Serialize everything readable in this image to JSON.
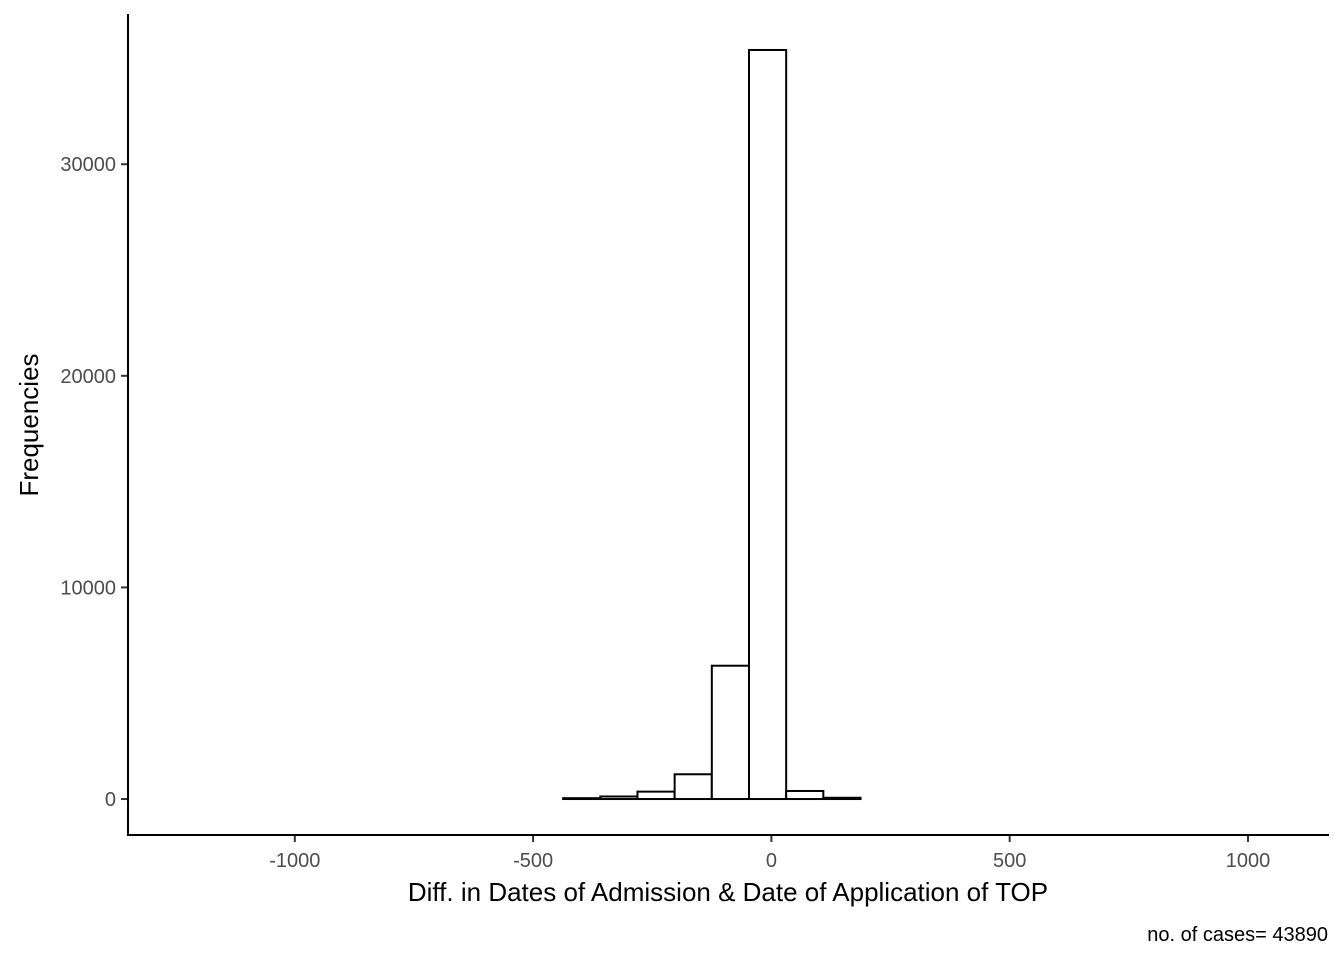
{
  "chart_data": {
    "type": "bar",
    "title": "",
    "xlabel": "Diff. in Dates of Admission & Date of Application of TOP",
    "ylabel": "Frequencies",
    "caption": "no. of cases= 43890",
    "xlim": [
      -1350,
      1170
    ],
    "ylim": [
      -1700,
      37100
    ],
    "x_ticks": [
      -1000,
      -500,
      0,
      500,
      1000
    ],
    "x_tick_labels": [
      "-1000",
      "-500",
      "0",
      "500",
      "1000"
    ],
    "y_ticks": [
      0,
      10000,
      20000,
      30000
    ],
    "y_tick_labels": [
      "0",
      "10000",
      "20000",
      "30000"
    ],
    "grid": false,
    "fill_color": "#ffffff",
    "outline_color": "#000000",
    "bins": [
      {
        "start": -1295,
        "end": -1217,
        "count": 0
      },
      {
        "start": -1217,
        "end": -1139,
        "count": 0
      },
      {
        "start": -1139,
        "end": -1061,
        "count": 0
      },
      {
        "start": -1061,
        "end": -983,
        "count": 0
      },
      {
        "start": -983,
        "end": -905,
        "count": 0
      },
      {
        "start": -905,
        "end": -827,
        "count": 0
      },
      {
        "start": -827,
        "end": -749,
        "count": 0
      },
      {
        "start": -749,
        "end": -671,
        "count": 0
      },
      {
        "start": -671,
        "end": -593,
        "count": 0
      },
      {
        "start": -593,
        "end": -515,
        "count": 0
      },
      {
        "start": -515,
        "end": -437,
        "count": 0
      },
      {
        "start": -437,
        "end": -359,
        "count": 40
      },
      {
        "start": -359,
        "end": -281,
        "count": 120
      },
      {
        "start": -281,
        "end": -203,
        "count": 350
      },
      {
        "start": -203,
        "end": -125,
        "count": 1170
      },
      {
        "start": -125,
        "end": -47,
        "count": 6300
      },
      {
        "start": -47,
        "end": 31,
        "count": 35400
      },
      {
        "start": 31,
        "end": 109,
        "count": 380
      },
      {
        "start": 109,
        "end": 187,
        "count": 60
      },
      {
        "start": 187,
        "end": 265,
        "count": 0
      },
      {
        "start": 265,
        "end": 343,
        "count": 0
      },
      {
        "start": 343,
        "end": 421,
        "count": 0
      },
      {
        "start": 421,
        "end": 499,
        "count": 0
      },
      {
        "start": 499,
        "end": 577,
        "count": 0
      },
      {
        "start": 577,
        "end": 655,
        "count": 0
      },
      {
        "start": 655,
        "end": 733,
        "count": 0
      },
      {
        "start": 733,
        "end": 811,
        "count": 0
      },
      {
        "start": 811,
        "end": 889,
        "count": 0
      },
      {
        "start": 889,
        "end": 967,
        "count": 0
      },
      {
        "start": 967,
        "end": 1058,
        "count": 0
      }
    ]
  }
}
